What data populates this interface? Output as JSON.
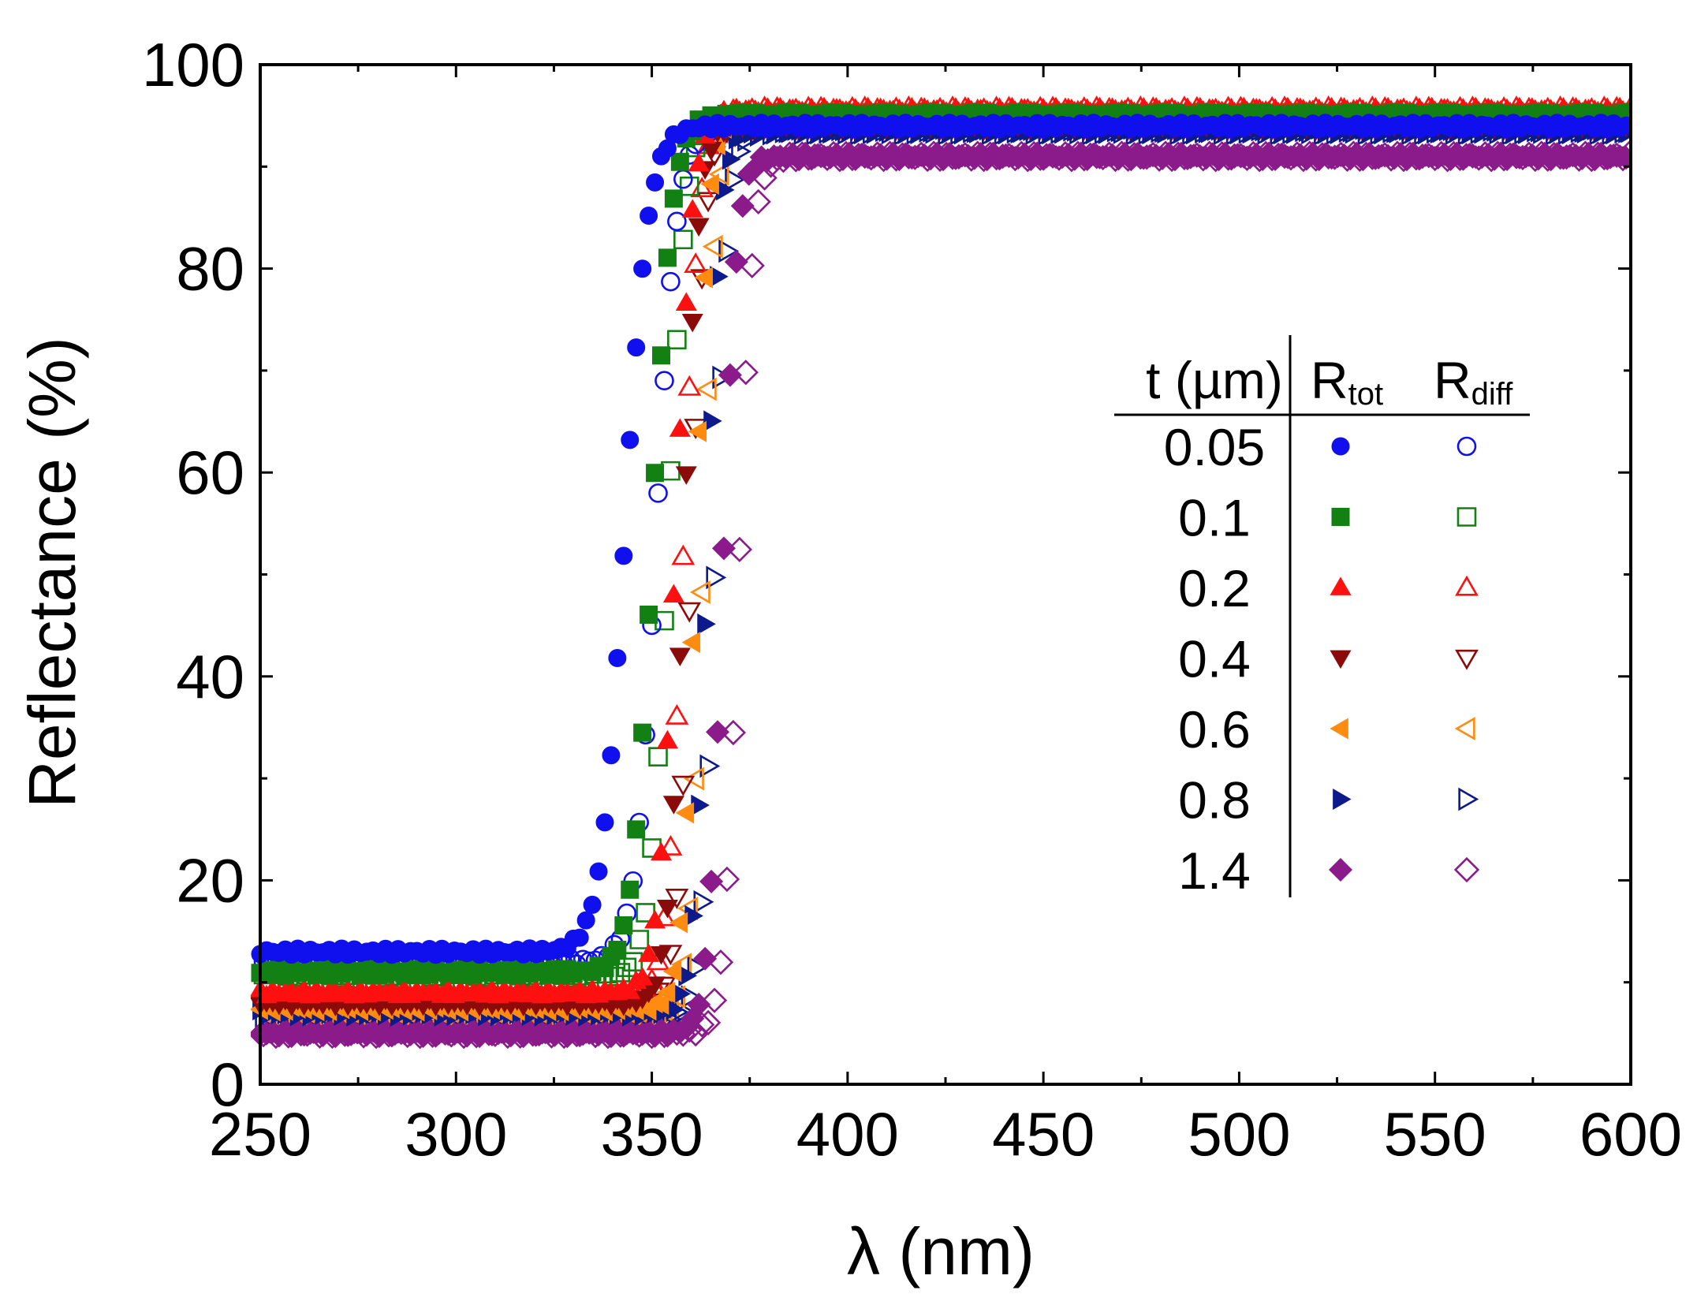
{
  "chart_data": {
    "type": "scatter",
    "title": "",
    "xlabel": "λ (nm)",
    "ylabel": "Reflectance (%)",
    "xlim": [
      250,
      600
    ],
    "ylim": [
      0,
      100
    ],
    "x_ticks": [
      "250",
      "300",
      "350",
      "400",
      "450",
      "500",
      "550",
      "600"
    ],
    "y_ticks": [
      "0",
      "20",
      "40",
      "60",
      "80",
      "100"
    ],
    "grid": false,
    "legend": {
      "placement": "right-middle",
      "header": {
        "thickness": "t (µm)",
        "total_main": "R",
        "total_sub": "tot",
        "diffuse_main": "R",
        "diffuse_sub": "diff"
      },
      "rows": [
        "0.05",
        "0.1",
        "0.2",
        "0.4",
        "0.6",
        "0.8",
        "1.4"
      ]
    },
    "series": [
      {
        "thickness": "0.05",
        "kind": "Rtot",
        "marker": "circle",
        "filled": true,
        "color": "#1010ee",
        "low": 13,
        "high": 94,
        "center": 343,
        "width": 13.0
      },
      {
        "thickness": "0.05",
        "kind": "Rdiff",
        "marker": "circle",
        "filled": false,
        "color": "#1010ee",
        "low": 12,
        "high": 94,
        "center": 351,
        "width": 11.5
      },
      {
        "thickness": "0.1",
        "kind": "Rtot",
        "marker": "square",
        "filled": true,
        "color": "#138013",
        "low": 11,
        "high": 95,
        "center": 350,
        "width": 11.0
      },
      {
        "thickness": "0.1",
        "kind": "Rdiff",
        "marker": "square",
        "filled": false,
        "color": "#138013",
        "low": 10.5,
        "high": 95,
        "center": 354,
        "width": 10.0
      },
      {
        "thickness": "0.2",
        "kind": "Rtot",
        "marker": "triangle-up",
        "filled": true,
        "color": "#ff1010",
        "low": 9,
        "high": 95.5,
        "center": 356,
        "width": 9.5
      },
      {
        "thickness": "0.2",
        "kind": "Rdiff",
        "marker": "triangle-up",
        "filled": false,
        "color": "#ff1010",
        "low": 8.5,
        "high": 95.5,
        "center": 358,
        "width": 9.0
      },
      {
        "thickness": "0.4",
        "kind": "Rtot",
        "marker": "triangle-down",
        "filled": true,
        "color": "#8b0a0a",
        "low": 8,
        "high": 94,
        "center": 358,
        "width": 8.5
      },
      {
        "thickness": "0.4",
        "kind": "Rdiff",
        "marker": "triangle-down",
        "filled": false,
        "color": "#8b0a0a",
        "low": 8,
        "high": 94,
        "center": 360,
        "width": 8.0
      },
      {
        "thickness": "0.6",
        "kind": "Rtot",
        "marker": "triangle-left",
        "filled": true,
        "color": "#ff8c10",
        "low": 7.5,
        "high": 95,
        "center": 361,
        "width": 7.5
      },
      {
        "thickness": "0.6",
        "kind": "Rdiff",
        "marker": "triangle-left",
        "filled": false,
        "color": "#ff8c10",
        "low": 7,
        "high": 95,
        "center": 363,
        "width": 7.5
      },
      {
        "thickness": "0.8",
        "kind": "Rtot",
        "marker": "triangle-right",
        "filled": true,
        "color": "#0c1a8c",
        "low": 7,
        "high": 93.5,
        "center": 364,
        "width": 7.5
      },
      {
        "thickness": "0.8",
        "kind": "Rdiff",
        "marker": "triangle-right",
        "filled": false,
        "color": "#0c1a8c",
        "low": 6.5,
        "high": 93.5,
        "center": 366,
        "width": 7.5
      },
      {
        "thickness": "1.4",
        "kind": "Rtot",
        "marker": "diamond",
        "filled": true,
        "color": "#8b1a8b",
        "low": 5,
        "high": 91,
        "center": 368,
        "width": 8.0
      },
      {
        "thickness": "1.4",
        "kind": "Rdiff",
        "marker": "diamond",
        "filled": false,
        "color": "#8b1a8b",
        "low": 5,
        "high": 91,
        "center": 372,
        "width": 8.0
      }
    ]
  }
}
